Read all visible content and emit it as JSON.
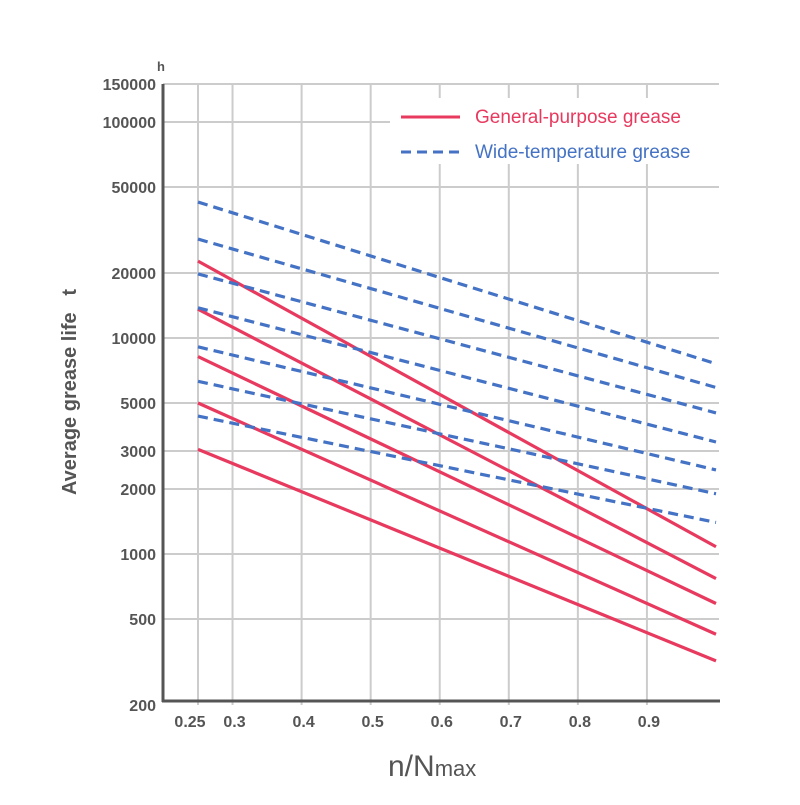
{
  "chart_data": {
    "type": "line",
    "title": "",
    "xlabel": "n/N",
    "xlabel_sub": "max",
    "ylabel": "Average grease life   t",
    "yunit": "h",
    "yscale": "log",
    "xlim": [
      0.25,
      1.0
    ],
    "ylim": [
      200,
      150000
    ],
    "xticks": [
      0.25,
      0.3,
      0.4,
      0.5,
      0.6,
      0.7,
      0.8,
      0.9
    ],
    "xtick_labels": [
      "0.25",
      "0.3",
      "0.4",
      "0.5",
      "0.6",
      "0.7",
      "0.8",
      "0.9"
    ],
    "yticks": [
      200,
      500,
      1000,
      2000,
      3000,
      5000,
      10000,
      20000,
      50000,
      100000,
      150000
    ],
    "ytick_labels": [
      "200",
      "500",
      "1000",
      "2000",
      "3000",
      "5000",
      "10000",
      "20000",
      "50000",
      "100000",
      "150000"
    ],
    "grid": true,
    "legend_position": "top-right",
    "legend": [
      {
        "label": "General-purpose grease",
        "color": "#e8395e",
        "style": "solid"
      },
      {
        "label": "Wide-temperature grease",
        "color": "#4472c4",
        "style": "dashed"
      }
    ],
    "series": [
      {
        "group": 0,
        "x": [
          0.25,
          1.0
        ],
        "y": [
          22700,
          1080
        ]
      },
      {
        "group": 0,
        "x": [
          0.25,
          1.0
        ],
        "y": [
          13600,
          770
        ]
      },
      {
        "group": 0,
        "x": [
          0.25,
          1.0
        ],
        "y": [
          8200,
          590
        ]
      },
      {
        "group": 0,
        "x": [
          0.25,
          1.0
        ],
        "y": [
          5000,
          425
        ]
      },
      {
        "group": 0,
        "x": [
          0.25,
          1.0
        ],
        "y": [
          3050,
          320
        ]
      },
      {
        "group": 1,
        "x": [
          0.25,
          1.0
        ],
        "y": [
          42600,
          7600
        ]
      },
      {
        "group": 1,
        "x": [
          0.25,
          1.0
        ],
        "y": [
          28700,
          5900
        ]
      },
      {
        "group": 1,
        "x": [
          0.25,
          1.0
        ],
        "y": [
          19800,
          4500
        ]
      },
      {
        "group": 1,
        "x": [
          0.25,
          1.0
        ],
        "y": [
          13800,
          3300
        ]
      },
      {
        "group": 1,
        "x": [
          0.25,
          1.0
        ],
        "y": [
          9100,
          2450
        ]
      },
      {
        "group": 1,
        "x": [
          0.25,
          1.0
        ],
        "y": [
          6300,
          1900
        ]
      },
      {
        "group": 1,
        "x": [
          0.25,
          1.0
        ],
        "y": [
          4350,
          1400
        ]
      }
    ]
  }
}
